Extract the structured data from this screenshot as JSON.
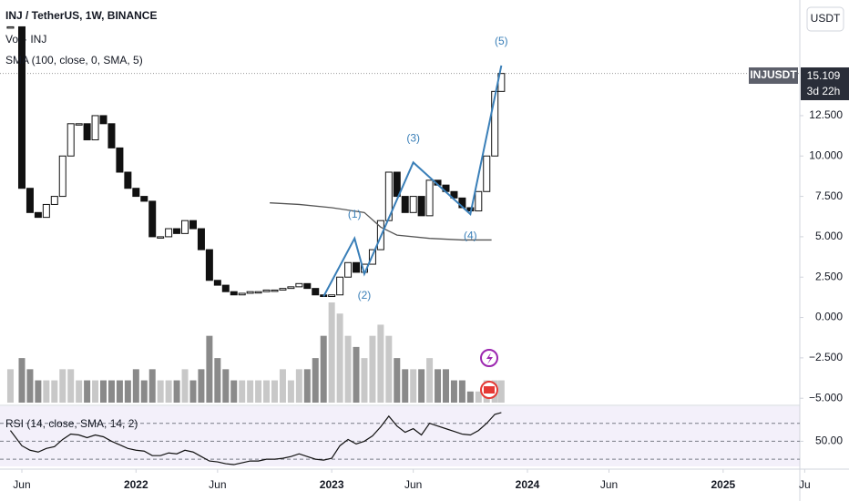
{
  "chart_data": {
    "type": "candlestick",
    "title": "INJ / TetherUS, 1W, BINANCE",
    "volume_title": "Vol · INJ",
    "sma_title": "SMA (100, close, 0, SMA, 5)",
    "rsi_title": "RSI (14, close, SMA, 14, 2)",
    "currency": "USDT",
    "symbol": "INJUSDT",
    "last_price_label": "15.109",
    "countdown": "3d 22h",
    "x": [
      4.3,
      5,
      5.5,
      6,
      6.5,
      7,
      7.5,
      8,
      8.5,
      9,
      9.5,
      10,
      10.5,
      11,
      11.5,
      12,
      12.5,
      13,
      13.5,
      14,
      14.5,
      15,
      15.5,
      16,
      16.5,
      17,
      17.5,
      18,
      18.5,
      19,
      19.5,
      20,
      20.5,
      21,
      21.5,
      22,
      22.5,
      23,
      23.5,
      24,
      24.5,
      25,
      25.5,
      26,
      26.5,
      27,
      27.5,
      28,
      28.5,
      29,
      29.5,
      30,
      30.5,
      31,
      31.5,
      32,
      32.5,
      33,
      33.5,
      34,
      34.4
    ],
    "closes": [
      18,
      8,
      6.5,
      6.2,
      7,
      7.5,
      10,
      12,
      12,
      11,
      12.5,
      12,
      10.5,
      9,
      8,
      7.5,
      7.2,
      5,
      5,
      5.5,
      5.2,
      6,
      5.5,
      4.2,
      2.3,
      2,
      1.6,
      1.4,
      1.5,
      1.6,
      1.6,
      1.7,
      1.7,
      1.8,
      1.9,
      2.1,
      1.8,
      1.4,
      1.3,
      1.4,
      2.5,
      3.4,
      2.8,
      3.3,
      4.2,
      6,
      9,
      7.5,
      6.5,
      7.5,
      6.3,
      8.5,
      8.2,
      7.8,
      7.4,
      6.8,
      6.6,
      7.8,
      10,
      14,
      15.109
    ],
    "volume": [
      3,
      4,
      3,
      2,
      2,
      2,
      3,
      3,
      2,
      2,
      2,
      2,
      2,
      2,
      2,
      3,
      2,
      3,
      2,
      2,
      2,
      3,
      2,
      3,
      6,
      4,
      3,
      2,
      2,
      2,
      2,
      2,
      2,
      3,
      2,
      3,
      3,
      4,
      6,
      9,
      8,
      6,
      5,
      4,
      6,
      7,
      6,
      4,
      3,
      3,
      3,
      4,
      3,
      3,
      2,
      2,
      1,
      1,
      2,
      2,
      2
    ],
    "rsi": [
      62,
      45,
      40,
      38,
      42,
      44,
      52,
      58,
      57,
      54,
      57,
      55,
      50,
      46,
      42,
      40,
      39,
      34,
      34,
      37,
      36,
      40,
      38,
      33,
      28,
      27,
      25,
      24,
      26,
      28,
      28,
      30,
      30,
      31,
      33,
      36,
      33,
      30,
      29,
      31,
      45,
      52,
      47,
      50,
      56,
      66,
      78,
      67,
      60,
      64,
      57,
      70,
      67,
      64,
      61,
      58,
      57,
      62,
      70,
      80,
      82
    ],
    "sma": {
      "x": [
        20.2,
        22,
        24,
        26,
        27,
        28,
        30,
        32,
        33.8
      ],
      "values": [
        7.1,
        7.0,
        6.8,
        6.5,
        5.6,
        5.1,
        4.9,
        4.8,
        4.8
      ],
      "color": "#555555"
    },
    "wave": {
      "x": [
        23.5,
        25.4,
        26,
        29,
        32.5,
        34.4
      ],
      "values": [
        1.3,
        4.9,
        2.7,
        9.6,
        6.4,
        15.6
      ],
      "labels": [
        "(1)",
        "(2)",
        "(3)",
        "(4)",
        "(5)"
      ],
      "color": "#3a7fb8"
    },
    "up_color": "#ffffff",
    "down_color": "#111111",
    "xlim": [
      3.66,
      52.7
    ],
    "xticks": [
      {
        "value": 5,
        "label": "Jun"
      },
      {
        "value": 12,
        "label": "2022"
      },
      {
        "value": 17,
        "label": "Jun"
      },
      {
        "value": 24,
        "label": "2023"
      },
      {
        "value": 29,
        "label": "Jun"
      },
      {
        "value": 36,
        "label": "2024"
      },
      {
        "value": 41,
        "label": "Jun"
      },
      {
        "value": 48,
        "label": "2025"
      },
      {
        "value": 53,
        "label": "Ju"
      }
    ],
    "ylim": [
      -5.44,
      19.66
    ],
    "yticks": [
      {
        "value": -5,
        "label": "−5.000"
      },
      {
        "value": -2.5,
        "label": "−2.500"
      },
      {
        "value": 0,
        "label": "0.000"
      },
      {
        "value": 2.5,
        "label": "2.500"
      },
      {
        "value": 5,
        "label": "5.000"
      },
      {
        "value": 7.5,
        "label": "7.500"
      },
      {
        "value": 10,
        "label": "10.000"
      },
      {
        "value": 12.5,
        "label": "12.500"
      }
    ],
    "rsi_lim": [
      22,
      89
    ],
    "rsi_ticks": [
      {
        "value": 50,
        "label": "50.00"
      }
    ],
    "rsi_bands": [
      30,
      50,
      70
    ]
  }
}
